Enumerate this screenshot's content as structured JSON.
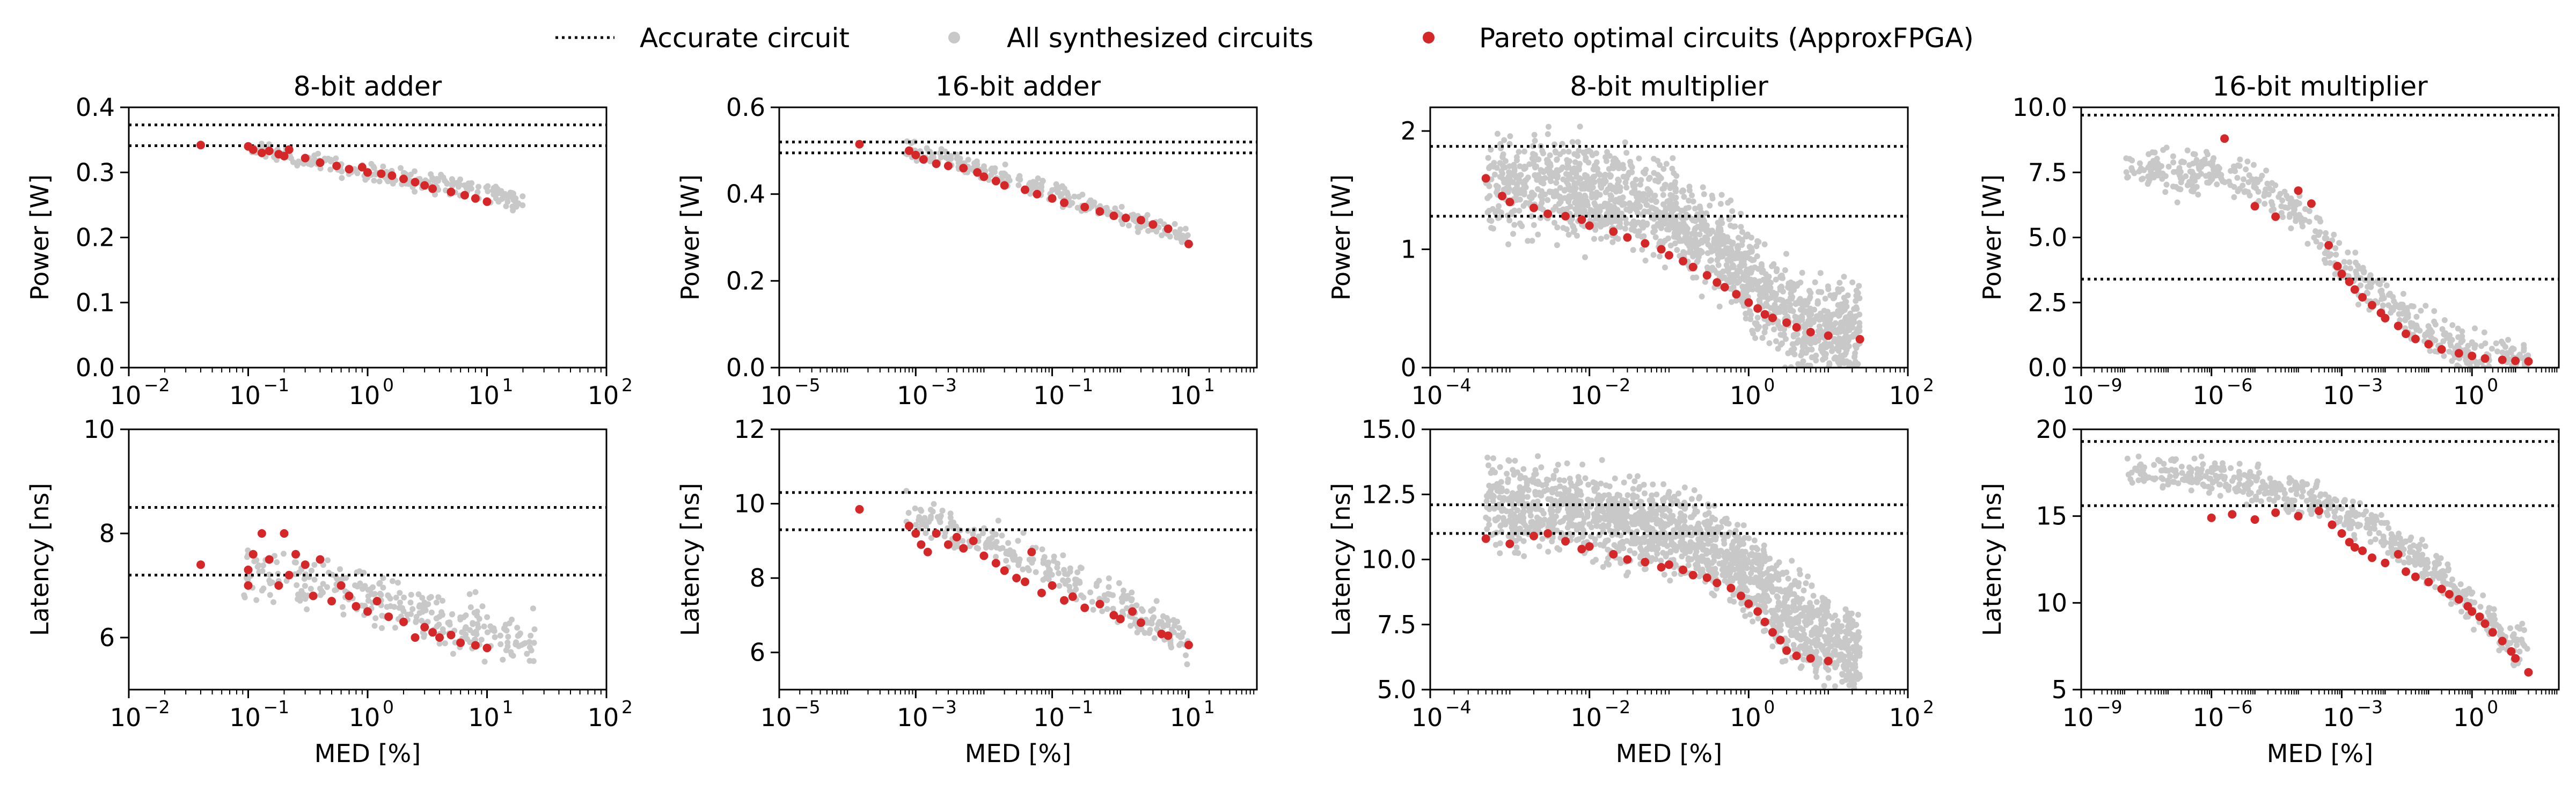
{
  "legend": {
    "placement": "top-center",
    "entries": [
      {
        "name": "Accurate circuit",
        "marker": "dotted-line",
        "color": "#000000"
      },
      {
        "name": "All synthesized circuits",
        "marker": "dot",
        "color": "#c8c8c8"
      },
      {
        "name": "Pareto optimal circuits (ApproxFPGA)",
        "marker": "dot",
        "color": "#d62728"
      }
    ]
  },
  "colors": {
    "all": "#c8c8c8",
    "pareto": "#d62728",
    "accurate": "#000000"
  },
  "chart_data": [
    {
      "id": "p_add8",
      "type": "scatter",
      "title": "8-bit adder",
      "xlabel": "",
      "ylabel": "Power [W]",
      "xscale": "log",
      "xlim": [
        0.01,
        100
      ],
      "ylim": [
        0.0,
        0.4
      ],
      "xticks": [
        0.01,
        0.1,
        1,
        10,
        100
      ],
      "xtick_labels": [
        "10",
        "10",
        "10",
        "10",
        "10"
      ],
      "xtick_exponents": [
        "−2",
        "−1",
        "0",
        "1",
        "2"
      ],
      "yticks": [
        0.0,
        0.1,
        0.2,
        0.3,
        0.4
      ],
      "ytick_labels": [
        "0.0",
        "0.1",
        "0.2",
        "0.3",
        "0.4"
      ],
      "accurate_lines": [
        0.373,
        0.341
      ],
      "all_trend": {
        "x": [
          0.1,
          0.3,
          1,
          3,
          10,
          20
        ],
        "y": [
          0.34,
          0.32,
          0.3,
          0.285,
          0.27,
          0.255
        ],
        "x_range": [
          0.09,
          20
        ],
        "spread": 0.012,
        "count": 220
      },
      "pareto": {
        "x": [
          0.04,
          0.1,
          0.11,
          0.13,
          0.15,
          0.18,
          0.2,
          0.22,
          0.3,
          0.4,
          0.55,
          0.7,
          0.9,
          1.0,
          1.3,
          1.6,
          2.0,
          2.5,
          3.0,
          3.5,
          5.0,
          6.5,
          8.0,
          10.0
        ],
        "y": [
          0.342,
          0.34,
          0.335,
          0.33,
          0.333,
          0.328,
          0.325,
          0.335,
          0.322,
          0.315,
          0.31,
          0.305,
          0.308,
          0.3,
          0.298,
          0.295,
          0.29,
          0.285,
          0.28,
          0.275,
          0.27,
          0.265,
          0.26,
          0.255
        ]
      }
    },
    {
      "id": "p_add16",
      "type": "scatter",
      "title": "16-bit adder",
      "xlabel": "",
      "ylabel": "Power [W]",
      "xscale": "log",
      "xlim": [
        1e-05,
        100
      ],
      "ylim": [
        0.0,
        0.6
      ],
      "xticks": [
        1e-05,
        0.001,
        0.1,
        10
      ],
      "xtick_labels": [
        "10",
        "10",
        "10",
        "10"
      ],
      "xtick_exponents": [
        "−5",
        "−3",
        "−1",
        "1"
      ],
      "yticks": [
        0.0,
        0.2,
        0.4,
        0.6
      ],
      "ytick_labels": [
        "0.0",
        "0.2",
        "0.4",
        "0.6"
      ],
      "accurate_lines": [
        0.52,
        0.495
      ],
      "all_trend": {
        "x": [
          0.0007,
          0.003,
          0.01,
          0.05,
          0.2,
          1,
          3,
          10
        ],
        "y": [
          0.5,
          0.48,
          0.45,
          0.42,
          0.39,
          0.35,
          0.33,
          0.3
        ],
        "x_range": [
          0.0007,
          10
        ],
        "spread": 0.02,
        "count": 230
      },
      "pareto": {
        "x": [
          0.00015,
          0.0008,
          0.001,
          0.0013,
          0.002,
          0.003,
          0.005,
          0.008,
          0.01,
          0.015,
          0.02,
          0.04,
          0.06,
          0.1,
          0.15,
          0.3,
          0.5,
          0.8,
          1.2,
          2.0,
          3.0,
          5.0,
          10.0
        ],
        "y": [
          0.515,
          0.5,
          0.49,
          0.48,
          0.47,
          0.465,
          0.46,
          0.45,
          0.44,
          0.43,
          0.42,
          0.41,
          0.4,
          0.39,
          0.38,
          0.37,
          0.36,
          0.35,
          0.345,
          0.34,
          0.33,
          0.32,
          0.285
        ]
      }
    },
    {
      "id": "p_mul8",
      "type": "scatter",
      "title": "8-bit multiplier",
      "xlabel": "",
      "ylabel": "Power [W]",
      "xscale": "log",
      "xlim": [
        0.0001,
        100
      ],
      "ylim": [
        0.0,
        2.2
      ],
      "xticks": [
        0.0001,
        0.01,
        1,
        100
      ],
      "xtick_labels": [
        "10",
        "10",
        "10",
        "10"
      ],
      "xtick_exponents": [
        "−4",
        "−2",
        "0",
        "2"
      ],
      "yticks": [
        0,
        1,
        2
      ],
      "ytick_labels": [
        "0",
        "1",
        "2"
      ],
      "accurate_lines": [
        1.87,
        1.28
      ],
      "all_trend": {
        "x": [
          0.0005,
          0.003,
          0.02,
          0.1,
          0.5,
          1.5,
          5,
          20
        ],
        "y": [
          1.5,
          1.55,
          1.45,
          1.3,
          1.0,
          0.6,
          0.35,
          0.25
        ],
        "x_range": [
          0.0005,
          25
        ],
        "spread": 0.35,
        "count": 1600
      },
      "pareto": {
        "x": [
          0.0005,
          0.0008,
          0.001,
          0.002,
          0.003,
          0.005,
          0.008,
          0.01,
          0.02,
          0.03,
          0.05,
          0.08,
          0.1,
          0.15,
          0.2,
          0.3,
          0.4,
          0.5,
          0.7,
          1.0,
          1.3,
          1.6,
          2.0,
          3.0,
          4.0,
          6.0,
          10.0,
          25.0
        ],
        "y": [
          1.6,
          1.45,
          1.4,
          1.35,
          1.3,
          1.28,
          1.25,
          1.2,
          1.15,
          1.1,
          1.05,
          1.0,
          0.95,
          0.9,
          0.85,
          0.78,
          0.72,
          0.68,
          0.62,
          0.55,
          0.5,
          0.45,
          0.42,
          0.38,
          0.34,
          0.3,
          0.27,
          0.24
        ]
      }
    },
    {
      "id": "p_mul16",
      "type": "scatter",
      "title": "16-bit multiplier",
      "xlabel": "",
      "ylabel": "Power [W]",
      "xscale": "log",
      "xlim": [
        1e-09,
        100
      ],
      "ylim": [
        0.0,
        10.0
      ],
      "xticks": [
        1e-09,
        1e-06,
        0.001,
        1
      ],
      "xtick_labels": [
        "10",
        "10",
        "10",
        "10"
      ],
      "xtick_exponents": [
        "−9",
        "−6",
        "−3",
        "0"
      ],
      "yticks": [
        0.0,
        2.5,
        5.0,
        7.5,
        10.0
      ],
      "ytick_labels": [
        "0.0",
        "2.5",
        "5.0",
        "7.5",
        "10.0"
      ],
      "accurate_lines": [
        9.7,
        3.4
      ],
      "all_trend": {
        "x": [
          1e-08,
          1e-07,
          1e-06,
          1e-05,
          0.0001,
          0.001,
          0.01,
          0.1,
          1,
          10
        ],
        "y": [
          7.8,
          7.5,
          7.6,
          7.0,
          6.0,
          4.0,
          2.5,
          1.2,
          0.5,
          0.25
        ],
        "x_range": [
          1e-08,
          20
        ],
        "spread": 0.7,
        "count": 520
      },
      "pareto": {
        "x": [
          2e-06,
          1e-05,
          3e-05,
          0.0001,
          0.0002,
          0.0005,
          0.0008,
          0.001,
          0.0015,
          0.002,
          0.003,
          0.005,
          0.008,
          0.01,
          0.02,
          0.03,
          0.05,
          0.1,
          0.2,
          0.5,
          1.0,
          2.0,
          5.0,
          10.0,
          20.0
        ],
        "y": [
          8.8,
          6.2,
          5.8,
          6.8,
          6.3,
          4.7,
          3.9,
          3.6,
          3.3,
          3.0,
          2.7,
          2.4,
          2.1,
          1.9,
          1.6,
          1.3,
          1.1,
          0.9,
          0.7,
          0.55,
          0.45,
          0.35,
          0.3,
          0.26,
          0.24
        ]
      }
    },
    {
      "id": "l_add8",
      "type": "scatter",
      "title": "",
      "xlabel": "MED [%]",
      "ylabel": "Latency [ns]",
      "xscale": "log",
      "xlim": [
        0.01,
        100
      ],
      "ylim": [
        5.0,
        10.0
      ],
      "xticks": [
        0.01,
        0.1,
        1,
        10,
        100
      ],
      "xtick_labels": [
        "10",
        "10",
        "10",
        "10",
        "10"
      ],
      "xtick_exponents": [
        "−2",
        "−1",
        "0",
        "1",
        "2"
      ],
      "yticks": [
        6,
        8,
        10
      ],
      "ytick_labels": [
        "6",
        "8",
        "10"
      ],
      "accurate_lines": [
        8.5,
        7.2
      ],
      "all_trend": {
        "x": [
          0.1,
          0.3,
          1,
          3,
          10,
          20
        ],
        "y": [
          7.3,
          7.1,
          6.8,
          6.5,
          6.1,
          6.0
        ],
        "x_range": [
          0.09,
          25
        ],
        "spread": 0.45,
        "count": 280
      },
      "pareto": {
        "x": [
          0.04,
          0.1,
          0.1,
          0.11,
          0.13,
          0.15,
          0.18,
          0.2,
          0.22,
          0.25,
          0.3,
          0.35,
          0.4,
          0.5,
          0.6,
          0.7,
          0.8,
          1.0,
          1.2,
          1.5,
          2.0,
          2.5,
          3.0,
          3.5,
          4.0,
          5.0,
          6.0,
          8.0,
          10.0
        ],
        "y": [
          7.4,
          7.0,
          7.3,
          7.6,
          8.0,
          7.5,
          7.0,
          8.0,
          7.2,
          7.6,
          7.4,
          6.8,
          7.5,
          6.7,
          7.0,
          6.8,
          6.6,
          6.5,
          6.7,
          6.4,
          6.3,
          6.0,
          6.2,
          6.1,
          6.0,
          6.05,
          5.9,
          5.85,
          5.8
        ]
      }
    },
    {
      "id": "l_add16",
      "type": "scatter",
      "title": "",
      "xlabel": "MED [%]",
      "ylabel": "Latency [ns]",
      "xscale": "log",
      "xlim": [
        1e-05,
        100
      ],
      "ylim": [
        5.0,
        12.0
      ],
      "xticks": [
        1e-05,
        0.001,
        0.1,
        10
      ],
      "xtick_labels": [
        "10",
        "10",
        "10",
        "10"
      ],
      "xtick_exponents": [
        "−5",
        "−3",
        "−1",
        "1"
      ],
      "yticks": [
        6,
        8,
        10,
        12
      ],
      "ytick_labels": [
        "6",
        "8",
        "10",
        "12"
      ],
      "accurate_lines": [
        10.3,
        9.3
      ],
      "all_trend": {
        "x": [
          0.0007,
          0.003,
          0.01,
          0.05,
          0.2,
          1,
          3,
          10
        ],
        "y": [
          9.8,
          9.4,
          9.0,
          8.5,
          7.9,
          7.3,
          6.8,
          6.3
        ],
        "x_range": [
          0.0007,
          10
        ],
        "spread": 0.45,
        "count": 260
      },
      "pareto": {
        "x": [
          0.00015,
          0.0008,
          0.001,
          0.0012,
          0.0015,
          0.002,
          0.003,
          0.004,
          0.005,
          0.007,
          0.01,
          0.015,
          0.02,
          0.03,
          0.04,
          0.05,
          0.07,
          0.1,
          0.15,
          0.2,
          0.3,
          0.5,
          0.8,
          1.0,
          1.5,
          2.0,
          4.0,
          5.0,
          10.0
        ],
        "y": [
          9.85,
          9.4,
          9.2,
          8.9,
          8.7,
          9.2,
          8.9,
          9.1,
          8.8,
          9.0,
          8.6,
          8.4,
          8.2,
          8.0,
          7.9,
          8.7,
          7.6,
          7.8,
          7.4,
          7.5,
          7.2,
          7.3,
          7.0,
          6.9,
          7.1,
          6.8,
          6.5,
          6.45,
          6.2
        ]
      }
    },
    {
      "id": "l_mul8",
      "type": "scatter",
      "title": "",
      "xlabel": "MED [%]",
      "ylabel": "Latency [ns]",
      "xscale": "log",
      "xlim": [
        0.0001,
        100
      ],
      "ylim": [
        5.0,
        15.0
      ],
      "xticks": [
        0.0001,
        0.01,
        1,
        100
      ],
      "xtick_labels": [
        "10",
        "10",
        "10",
        "10"
      ],
      "xtick_exponents": [
        "−4",
        "−2",
        "0",
        "2"
      ],
      "yticks": [
        5.0,
        7.5,
        10.0,
        12.5,
        15.0
      ],
      "ytick_labels": [
        "5.0",
        "7.5",
        "10.0",
        "12.5",
        "15.0"
      ],
      "accurate_lines": [
        12.1,
        11.0
      ],
      "all_trend": {
        "x": [
          0.0005,
          0.003,
          0.02,
          0.1,
          0.5,
          1.5,
          5,
          20
        ],
        "y": [
          12.0,
          12.0,
          11.6,
          11.0,
          10.3,
          9.0,
          7.5,
          6.5
        ],
        "x_range": [
          0.0005,
          25
        ],
        "spread": 1.4,
        "count": 1700
      },
      "pareto": {
        "x": [
          0.0005,
          0.001,
          0.002,
          0.003,
          0.005,
          0.008,
          0.01,
          0.02,
          0.03,
          0.05,
          0.08,
          0.1,
          0.15,
          0.2,
          0.3,
          0.4,
          0.6,
          0.8,
          1.0,
          1.3,
          1.6,
          2.0,
          2.5,
          3.0,
          4.0,
          6.0,
          10.0
        ],
        "y": [
          10.8,
          10.6,
          10.9,
          11.0,
          10.7,
          10.4,
          10.5,
          10.2,
          10.0,
          9.9,
          9.7,
          9.8,
          9.6,
          9.4,
          9.3,
          9.1,
          8.9,
          8.6,
          8.3,
          8.0,
          7.6,
          7.2,
          6.9,
          6.5,
          6.3,
          6.2,
          6.1
        ]
      }
    },
    {
      "id": "l_mul16",
      "type": "scatter",
      "title": "",
      "xlabel": "MED [%]",
      "ylabel": "Latency [ns]",
      "xscale": "log",
      "xlim": [
        1e-09,
        100
      ],
      "ylim": [
        5.0,
        20.0
      ],
      "xticks": [
        1e-09,
        1e-06,
        0.001,
        1
      ],
      "xtick_labels": [
        "10",
        "10",
        "10",
        "10"
      ],
      "xtick_exponents": [
        "−9",
        "−6",
        "−3",
        "0"
      ],
      "yticks": [
        5,
        10,
        15,
        20
      ],
      "ytick_labels": [
        "5",
        "10",
        "15",
        "20"
      ],
      "accurate_lines": [
        19.3,
        15.6
      ],
      "all_trend": {
        "x": [
          1e-08,
          1e-07,
          1e-06,
          1e-05,
          0.0001,
          0.001,
          0.01,
          0.1,
          1,
          10
        ],
        "y": [
          17.5,
          17.5,
          17.3,
          16.8,
          16.2,
          15.3,
          14.0,
          12.0,
          10.0,
          7.5
        ],
        "x_range": [
          1e-08,
          20
        ],
        "spread": 0.9,
        "count": 560
      },
      "pareto": {
        "x": [
          1e-06,
          3e-06,
          1e-05,
          3e-05,
          0.0001,
          0.0003,
          0.0006,
          0.001,
          0.0015,
          0.002,
          0.003,
          0.005,
          0.01,
          0.02,
          0.03,
          0.05,
          0.1,
          0.2,
          0.3,
          0.5,
          0.8,
          1.0,
          1.5,
          2.0,
          3.0,
          5.0,
          8.0,
          10.0,
          20.0
        ],
        "y": [
          14.9,
          15.1,
          14.8,
          15.2,
          15.0,
          15.3,
          14.5,
          14.0,
          13.5,
          13.2,
          13.0,
          12.6,
          12.3,
          12.8,
          11.8,
          11.5,
          11.2,
          10.8,
          10.5,
          10.2,
          9.8,
          9.5,
          9.2,
          8.8,
          8.3,
          7.8,
          7.2,
          6.8,
          6.0
        ]
      }
    }
  ]
}
